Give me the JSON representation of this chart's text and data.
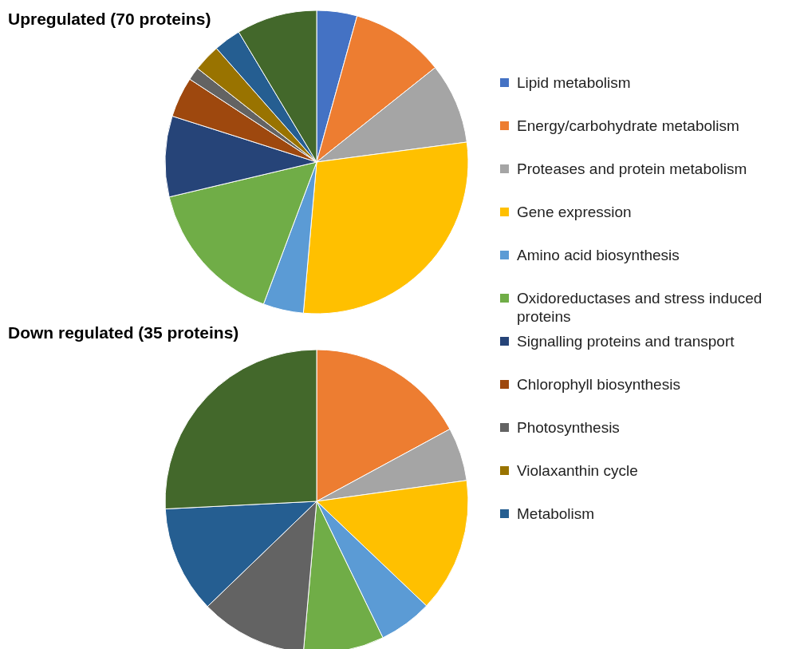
{
  "chart_data": [
    {
      "type": "pie",
      "title": "Upregulated (70 proteins)",
      "legend": "right",
      "categories": [
        "Lipid metabolism",
        "Energy/carbohydrate metabolism",
        "Proteases and protein metabolism",
        "Gene expression",
        "Amino acid biosynthesis",
        "Oxidoreductases and stress induced proteins",
        "Signalling proteins and transport",
        "Chlorophyll biosynthesis",
        "Photosynthesis",
        "Violaxanthin cycle",
        "Metabolism",
        null
      ],
      "values": [
        4.3,
        10.0,
        8.6,
        28.5,
        4.3,
        15.6,
        8.6,
        4.3,
        1.4,
        2.9,
        2.9,
        8.6
      ],
      "colors": [
        "#4472c4",
        "#ed7d31",
        "#a5a5a5",
        "#ffc000",
        "#5b9bd5",
        "#70ad47",
        "#264478",
        "#9e480e",
        "#636363",
        "#997300",
        "#255e91",
        "#43682b"
      ]
    },
    {
      "type": "pie",
      "title": "Down regulated (35 proteins)",
      "categories": [
        null,
        null,
        null,
        null,
        null,
        null,
        null,
        null,
        null,
        null,
        null,
        null
      ],
      "values": [
        0,
        17.1,
        5.7,
        14.3,
        5.7,
        8.6,
        0,
        0,
        11.4,
        0,
        11.4,
        25.8
      ],
      "colors": [
        "#4472c4",
        "#ed7d31",
        "#a5a5a5",
        "#ffc000",
        "#5b9bd5",
        "#70ad47",
        "#264478",
        "#9e480e",
        "#636363",
        "#997300",
        "#255e91",
        "#43682b"
      ]
    }
  ]
}
